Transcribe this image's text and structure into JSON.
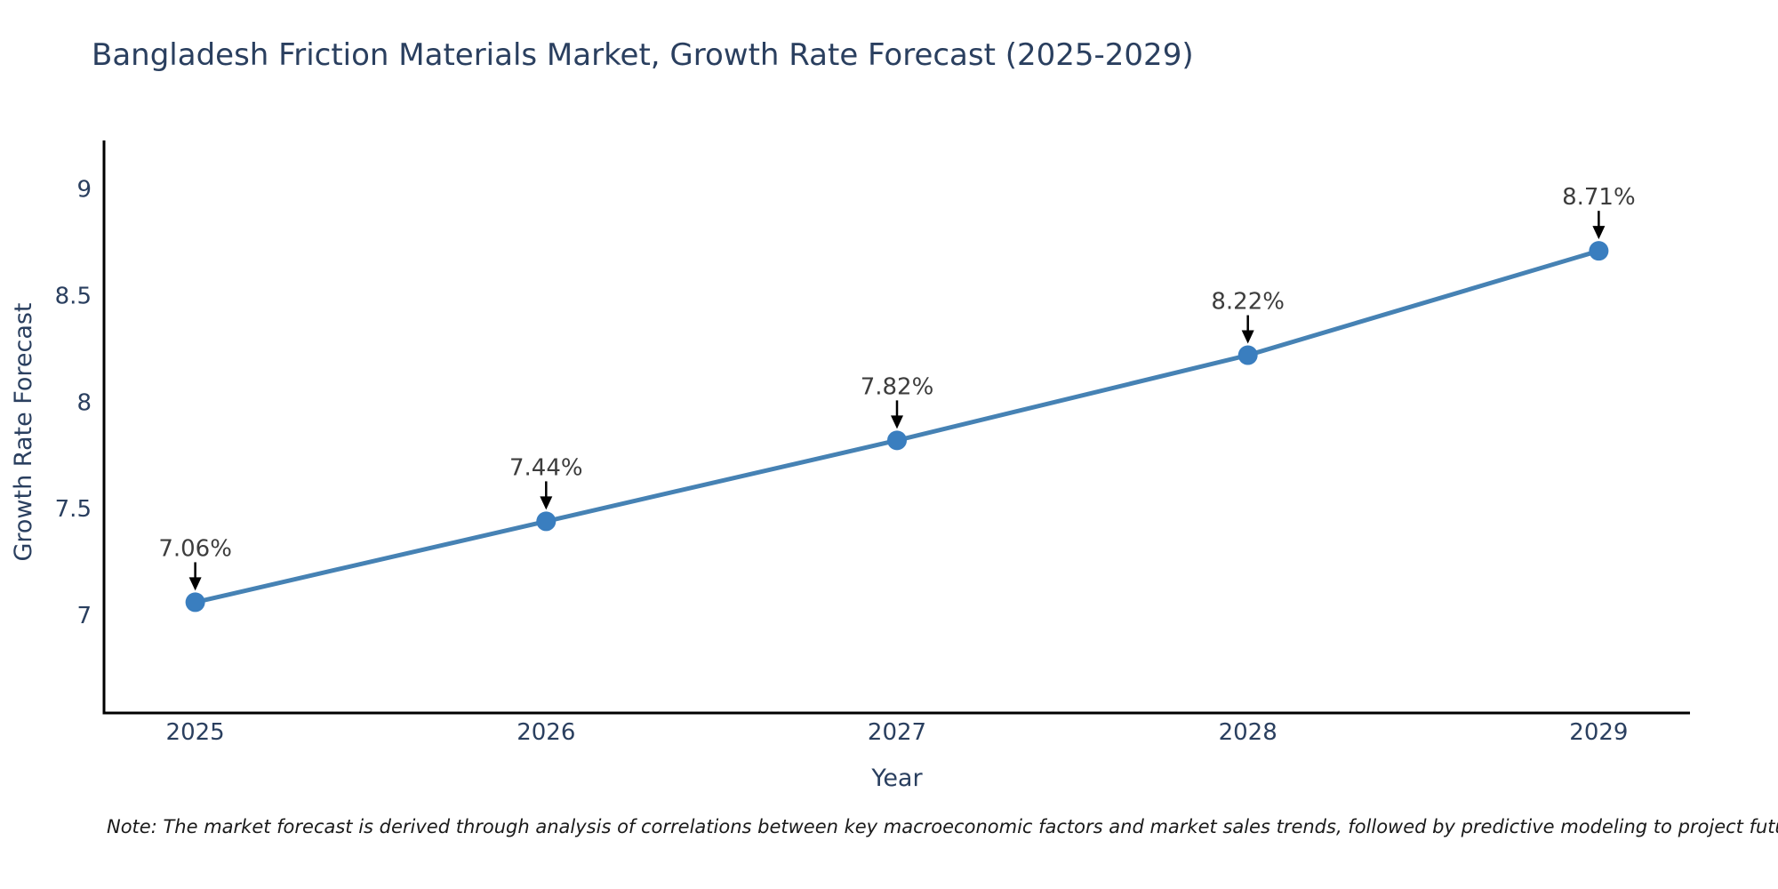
{
  "header": {
    "title": "Bangladesh Friction Materials Market, Growth Rate Forecast (2025-2029)"
  },
  "footer": {
    "note": "Note: The market forecast is derived through analysis of correlations between key macroeconomic factors and market sales trends, followed by predictive modeling to project future sales"
  },
  "chart_data": {
    "type": "line",
    "title": "Bangladesh Friction Materials Market, Growth Rate Forecast (2025-2029)",
    "xlabel": "Year",
    "ylabel": "Growth Rate Forecast",
    "x": [
      2025,
      2026,
      2027,
      2028,
      2029
    ],
    "categories": [
      "2025",
      "2026",
      "2027",
      "2028",
      "2029"
    ],
    "series": [
      {
        "name": "Growth Rate Forecast",
        "values": [
          7.06,
          7.44,
          7.82,
          8.22,
          8.71
        ]
      }
    ],
    "point_labels": [
      "7.06%",
      "7.44%",
      "7.82%",
      "8.22%",
      "8.71%"
    ],
    "xtick_labels": [
      "2025",
      "2026",
      "2027",
      "2028",
      "2029"
    ],
    "yticks": [
      7,
      7.5,
      8,
      8.5,
      9
    ],
    "ytick_labels": [
      "7",
      "7.5",
      "8",
      "8.5",
      "9"
    ],
    "xlim": [
      2024.74,
      2029.26
    ],
    "ylim": [
      6.54,
      9.22
    ],
    "grid": false,
    "legend_position": "none",
    "colors": {
      "line": "#4682b4",
      "marker": "#3a7ebf",
      "axis": "#000000",
      "tick_text": "#2a3f5f",
      "annotation_text": "#3d3d3d",
      "arrow": "#000000"
    }
  }
}
